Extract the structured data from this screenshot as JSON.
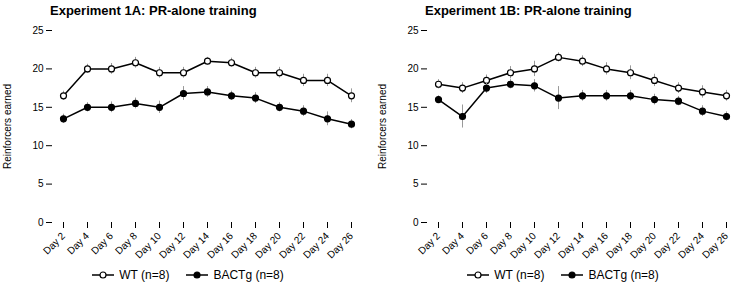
{
  "chart_data": [
    {
      "type": "line",
      "title": "Experiment 1A: PR-alone training",
      "categories": [
        "Day 2",
        "Day 4",
        "Day 6",
        "Day 8",
        "Day 10",
        "Day 12",
        "Day 14",
        "Day 16",
        "Day 18",
        "Day 20",
        "Day 22",
        "Day 24",
        "Day 26"
      ],
      "ylabel": "Reinforcers earned",
      "ylim": [
        0,
        25
      ],
      "yticks": [
        0,
        5,
        10,
        15,
        20,
        25
      ],
      "grid": false,
      "legend": "bottom",
      "series": [
        {
          "name": "WT (n=8)",
          "color": "#000000",
          "marker": "open_circle",
          "values": [
            16.5,
            20.0,
            20.0,
            20.8,
            19.5,
            19.5,
            21.0,
            20.8,
            19.5,
            19.5,
            18.5,
            18.5,
            16.5
          ],
          "errors": [
            0.6,
            0.6,
            0.7,
            0.7,
            0.7,
            0.7,
            0.5,
            0.6,
            0.7,
            0.7,
            0.8,
            0.8,
            0.9
          ]
        },
        {
          "name": "BACTg (n=8)",
          "color": "#000000",
          "marker": "circle",
          "values": [
            13.5,
            15.0,
            15.0,
            15.5,
            15.0,
            16.8,
            17.0,
            16.5,
            16.2,
            15.0,
            14.5,
            13.5,
            12.8
          ],
          "errors": [
            0.6,
            0.6,
            0.7,
            0.7,
            0.8,
            0.9,
            0.7,
            0.6,
            0.7,
            0.6,
            0.7,
            0.9,
            0.6
          ]
        }
      ]
    },
    {
      "type": "line",
      "title": "Experiment 1B: PR-alone training",
      "categories": [
        "Day 2",
        "Day 4",
        "Day 6",
        "Day 8",
        "Day 10",
        "Day 12",
        "Day 14",
        "Day 16",
        "Day 18",
        "Day 20",
        "Day 22",
        "Day 24",
        "Day 26"
      ],
      "ylabel": "Reinforcers earned",
      "ylim": [
        0,
        25
      ],
      "yticks": [
        0,
        5,
        10,
        15,
        20,
        25
      ],
      "grid": false,
      "legend": "bottom",
      "series": [
        {
          "name": "WT (n=8)",
          "color": "#000000",
          "marker": "open_circle",
          "values": [
            18.0,
            17.5,
            18.5,
            19.5,
            20.0,
            21.5,
            21.0,
            20.0,
            19.5,
            18.5,
            17.5,
            17.0,
            16.5
          ],
          "errors": [
            0.6,
            0.7,
            0.7,
            0.8,
            1.0,
            0.6,
            0.7,
            0.8,
            0.9,
            0.8,
            0.7,
            0.8,
            0.7
          ]
        },
        {
          "name": "BACTg (n=8)",
          "color": "#000000",
          "marker": "circle",
          "values": [
            16.0,
            13.8,
            17.5,
            18.0,
            17.8,
            16.2,
            16.5,
            16.5,
            16.5,
            16.0,
            15.8,
            14.5,
            13.8
          ],
          "errors": [
            0.5,
            1.5,
            0.7,
            0.6,
            0.8,
            1.5,
            0.7,
            0.7,
            0.7,
            0.7,
            0.6,
            0.7,
            0.6
          ]
        }
      ]
    }
  ]
}
